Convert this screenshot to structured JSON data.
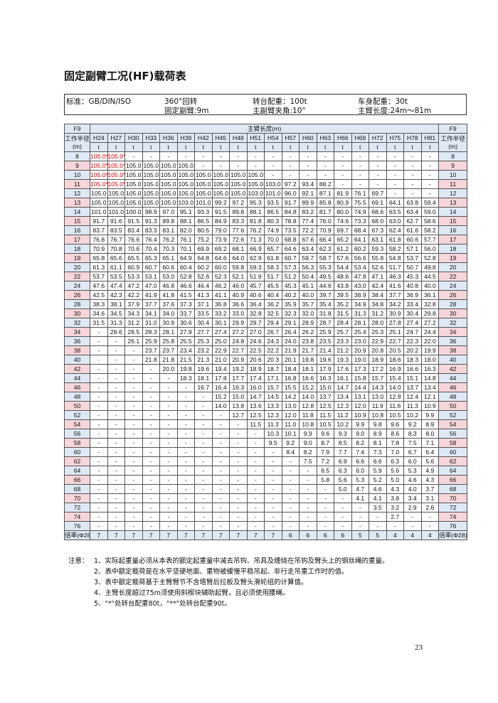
{
  "header": {
    "title": "固定副臂工况(HF)载荷表",
    "info": [
      "标准：GB/DIN/ISO",
      "360°回转",
      "固定副臂:9m",
      "转台配重：100t",
      "主副臂夹角:10°",
      "车身配重：30t",
      "主臂长度:24m～81m"
    ]
  },
  "table": {
    "corner": "F9",
    "boom_length_header": "主臂长度(m)",
    "radius_header": "工作半径(m)",
    "columns": [
      "H24",
      "H27",
      "H30",
      "H33",
      "H36",
      "H39",
      "H42",
      "H45",
      "H48",
      "H51",
      "H54",
      "H57",
      "H60",
      "H63",
      "H66",
      "H69",
      "H72",
      "H75",
      "H78",
      "H81"
    ],
    "units": [
      "t",
      "t",
      "t",
      "t",
      "t",
      "t",
      "t",
      "t",
      "t",
      "t",
      "t",
      "t",
      "t",
      "t",
      "t",
      "t",
      "t",
      "t",
      "t",
      "t"
    ],
    "rows": [
      {
        "radius": "8",
        "values": [
          "105.0*",
          "105.0*",
          "-",
          "-",
          "-",
          "-",
          "-",
          "-",
          "-",
          "-",
          "-",
          "-",
          "-",
          "-",
          "-",
          "-",
          "-",
          "-",
          "-",
          "-"
        ]
      },
      {
        "radius": "9",
        "values": [
          "105.0**",
          "105.0*",
          "105.0",
          "105.0",
          "105.0",
          "105.0",
          "-",
          "-",
          "-",
          "-",
          "-",
          "-",
          "-",
          "-",
          "-",
          "-",
          "-",
          "-",
          "-",
          "-"
        ]
      },
      {
        "radius": "10",
        "values": [
          "105.0**",
          "105.0*",
          "105.0",
          "105.0",
          "105.0",
          "105.0",
          "105.0",
          "105.0",
          "105.0",
          "105.0",
          "-",
          "-",
          "-",
          "-",
          "-",
          "-",
          "-",
          "-",
          "-",
          "-"
        ]
      },
      {
        "radius": "11",
        "values": [
          "105.0**",
          "105.0*",
          "105.0",
          "105.0",
          "105.0",
          "105.0",
          "105.0",
          "105.0",
          "105.0",
          "105.0",
          "103.0",
          "97.2",
          "93.4",
          "88.2",
          "-",
          "-",
          "-",
          "-",
          "-",
          "-"
        ]
      },
      {
        "radius": "12",
        "values": [
          "105.0",
          "105.0",
          "105.0",
          "105.0",
          "105.0",
          "105.0",
          "105.0",
          "105.0",
          "105.0",
          "103.0",
          "101.0",
          "96.0",
          "92.1",
          "87.1",
          "81.9",
          "76.1",
          "69.7",
          "-",
          "-",
          "-"
        ]
      },
      {
        "radius": "13",
        "values": [
          "105.0",
          "105.0",
          "105.0",
          "105.0",
          "105.0",
          "103.0",
          "101.0",
          "99.2",
          "97.2",
          "95.3",
          "93.5",
          "91.7",
          "89.9",
          "85.8",
          "80.9",
          "75.5",
          "69.1",
          "64.1",
          "63.8",
          "59.4"
        ]
      },
      {
        "radius": "14",
        "values": [
          "101.0",
          "101.0",
          "100.0",
          "98.9",
          "97.0",
          "95.1",
          "93.3",
          "91.5",
          "89.8",
          "88.1",
          "86.5",
          "84.8",
          "83.2",
          "81.7",
          "80.0",
          "74.9",
          "68.6",
          "63.5",
          "63.4",
          "59.0"
        ]
      },
      {
        "radius": "15",
        "values": [
          "91.7",
          "91.6",
          "91.5",
          "91.3",
          "89.8",
          "88.1",
          "86.5",
          "84.9",
          "83.3",
          "81.8",
          "80.3",
          "78.8",
          "77.4",
          "76.0",
          "74.6",
          "73.3",
          "68.0",
          "63.0",
          "62.7",
          "58.6"
        ]
      },
      {
        "radius": "16",
        "values": [
          "83.7",
          "83.5",
          "83.4",
          "83.3",
          "83.1",
          "82.0",
          "80.5",
          "79.0",
          "77.6",
          "76.2",
          "74.9",
          "73.5",
          "72.2",
          "70.9",
          "69.7",
          "68.4",
          "67.3",
          "62.4",
          "61.6",
          "58.2"
        ]
      },
      {
        "radius": "17",
        "values": [
          "76.8",
          "76.7",
          "76.6",
          "76.4",
          "76.2",
          "76.1",
          "75.2",
          "73.9",
          "72.6",
          "71.3",
          "70.0",
          "68.8",
          "67.6",
          "66.4",
          "65.2",
          "64.1",
          "63.1",
          "61.8",
          "60.6",
          "57.7"
        ]
      },
      {
        "radius": "18",
        "values": [
          "70.9",
          "70.8",
          "70.6",
          "70.4",
          "70.3",
          "70.1",
          "69.9",
          "69.2",
          "68.1",
          "66.9",
          "65.7",
          "64.6",
          "63.4",
          "62.3",
          "61.2",
          "60.2",
          "59.3",
          "58.2",
          "57.1",
          "56.0"
        ]
      },
      {
        "radius": "19",
        "values": [
          "65.8",
          "65.6",
          "65.5",
          "65.3",
          "65.1",
          "64.9",
          "64.8",
          "64.6",
          "64.0",
          "62.9",
          "61.8",
          "60.7",
          "59.7",
          "58.7",
          "57.6",
          "56.6",
          "55.8",
          "54.8",
          "53.7",
          "52.8"
        ]
      },
      {
        "radius": "20",
        "values": [
          "61.3",
          "61.1",
          "60.9",
          "60.7",
          "60.6",
          "60.4",
          "60.2",
          "60.0",
          "59.8",
          "59.3",
          "58.3",
          "57.3",
          "56.3",
          "55.3",
          "54.4",
          "53.4",
          "52.6",
          "51.7",
          "50.7",
          "49.8"
        ]
      },
      {
        "radius": "22",
        "values": [
          "53.7",
          "53.5",
          "53.3",
          "53.1",
          "53.0",
          "52.8",
          "52.6",
          "52.3",
          "52.1",
          "51.9",
          "51.7",
          "51.2",
          "50.4",
          "49.5",
          "48.6",
          "47.8",
          "47.1",
          "46.3",
          "45.3",
          "44.5"
        ]
      },
      {
        "radius": "24",
        "values": [
          "47.6",
          "47.4",
          "47.2",
          "47.0",
          "46.8",
          "46.6",
          "46.4",
          "46.2",
          "46.0",
          "45.7",
          "45.5",
          "45.3",
          "45.1",
          "44.6",
          "43.8",
          "43.0",
          "42.4",
          "41.6",
          "40.8",
          "40.0"
        ]
      },
      {
        "radius": "26",
        "values": [
          "42.5",
          "42.3",
          "42.2",
          "41.9",
          "41.8",
          "41.5",
          "41.3",
          "41.1",
          "40.9",
          "40.6",
          "40.4",
          "40.2",
          "40.0",
          "39.7",
          "39.5",
          "38.9",
          "38.4",
          "37.7",
          "36.9",
          "36.1"
        ]
      },
      {
        "radius": "28",
        "values": [
          "38.3",
          "38.1",
          "37.9",
          "37.7",
          "37.6",
          "37.3",
          "37.1",
          "36.8",
          "36.6",
          "36.4",
          "36.2",
          "35.9",
          "35.7",
          "35.4",
          "35.2",
          "34.9",
          "34.8",
          "34.2",
          "33.4",
          "32.8"
        ]
      },
      {
        "radius": "30",
        "values": [
          "34.6",
          "34.5",
          "34.3",
          "34.1",
          "34.0",
          "33.7",
          "33.5",
          "33.2",
          "33.0",
          "32.8",
          "32.5",
          "32.3",
          "32.0",
          "31.8",
          "31.5",
          "31.3",
          "31.2",
          "30.9",
          "30.4",
          "29.8"
        ]
      },
      {
        "radius": "32",
        "values": [
          "31.5",
          "31.3",
          "31.2",
          "31.0",
          "30.9",
          "30.6",
          "30.4",
          "30.1",
          "29.9",
          "29.7",
          "29.4",
          "29.1",
          "28.9",
          "28.7",
          "28.4",
          "28.1",
          "28.0",
          "27.8",
          "27.4",
          "27.2"
        ]
      },
      {
        "radius": "34",
        "values": [
          "-",
          "28.6",
          "28.5",
          "28.3",
          "28.1",
          "27.9",
          "27.7",
          "27.4",
          "27.2",
          "27.0",
          "26.7",
          "26.4",
          "26.2",
          "25.9",
          "25.7",
          "25.4",
          "25.3",
          "25.1",
          "24.7",
          "24.4"
        ]
      },
      {
        "radius": "36",
        "values": [
          "-",
          "-",
          "26.1",
          "25.9",
          "25.8",
          "25.5",
          "25.3",
          "25.0",
          "24.8",
          "24.6",
          "24.3",
          "24.0",
          "23.8",
          "23.5",
          "23.3",
          "23.0",
          "22.9",
          "22.7",
          "22.3",
          "22.0"
        ]
      },
      {
        "radius": "38",
        "values": [
          "-",
          "-",
          "-",
          "23.7",
          "23.7",
          "23.4",
          "23.2",
          "22.9",
          "22.7",
          "22.5",
          "22.2",
          "21.9",
          "21.7",
          "21.4",
          "21.2",
          "20.9",
          "20.8",
          "20.5",
          "20.2",
          "19.9"
        ]
      },
      {
        "radius": "40",
        "values": [
          "-",
          "-",
          "-",
          "21.8",
          "21.8",
          "21.5",
          "21.3",
          "21.0",
          "20.9",
          "20.6",
          "20.3",
          "20.1",
          "19.8",
          "19.6",
          "19.3",
          "19.0",
          "18.9",
          "18.6",
          "18.3",
          "18.0"
        ]
      },
      {
        "radius": "42",
        "values": [
          "-",
          "-",
          "-",
          "-",
          "20.0",
          "19.8",
          "19.6",
          "19.4",
          "19.2",
          "18.9",
          "18.7",
          "18.4",
          "18.1",
          "17.9",
          "17.6",
          "17.3",
          "17.2",
          "16.9",
          "16.6",
          "16.3"
        ]
      },
      {
        "radius": "44",
        "values": [
          "-",
          "-",
          "-",
          "-",
          "-",
          "18.3",
          "18.1",
          "17.8",
          "17.7",
          "17.4",
          "17.1",
          "16.8",
          "16.6",
          "16.3",
          "16.1",
          "15.8",
          "15.7",
          "15.4",
          "15.1",
          "14.8"
        ]
      },
      {
        "radius": "46",
        "values": [
          "-",
          "-",
          "-",
          "-",
          "-",
          "-",
          "16.7",
          "16.4",
          "16.3",
          "16.0",
          "15.7",
          "15.5",
          "15.2",
          "15.0",
          "14.7",
          "14.4",
          "14.3",
          "14.0",
          "13.7",
          "13.4"
        ]
      },
      {
        "radius": "48",
        "values": [
          "-",
          "-",
          "-",
          "-",
          "-",
          "-",
          "-",
          "15.2",
          "15.0",
          "14.7",
          "14.5",
          "14.2",
          "14.0",
          "13.7",
          "13.4",
          "13.1",
          "13.0",
          "12.8",
          "12.4",
          "12.1"
        ]
      },
      {
        "radius": "50",
        "values": [
          "-",
          "-",
          "-",
          "-",
          "-",
          "-",
          "-",
          "14.0",
          "13.8",
          "13.6",
          "13.3",
          "13.0",
          "12.8",
          "12.5",
          "12.3",
          "12.0",
          "11.9",
          "11.6",
          "11.3",
          "10.9"
        ]
      },
      {
        "radius": "52",
        "values": [
          "-",
          "-",
          "-",
          "-",
          "-",
          "-",
          "-",
          "-",
          "12.7",
          "12.5",
          "12.3",
          "12.0",
          "11.8",
          "11.5",
          "11.2",
          "10.9",
          "10.8",
          "10.5",
          "10.2",
          "9.9"
        ]
      },
      {
        "radius": "54",
        "values": [
          "-",
          "-",
          "-",
          "-",
          "-",
          "-",
          "-",
          "-",
          "-",
          "11.5",
          "11.3",
          "11.0",
          "10.8",
          "10.5",
          "10.2",
          "9.9",
          "9.8",
          "9.6",
          "9.2",
          "8.9"
        ]
      },
      {
        "radius": "56",
        "values": [
          "-",
          "-",
          "-",
          "-",
          "-",
          "-",
          "-",
          "-",
          "-",
          "-",
          "10.3",
          "10.1",
          "9.9",
          "9.6",
          "9.3",
          "9.0",
          "8.9",
          "8.6",
          "8.3",
          "8.0"
        ]
      },
      {
        "radius": "58",
        "values": [
          "-",
          "-",
          "-",
          "-",
          "-",
          "-",
          "-",
          "-",
          "-",
          "-",
          "9.5",
          "9.2",
          "9.0",
          "8.7",
          "8.5",
          "8.2",
          "8.1",
          "7.8",
          "7.5",
          "7.1"
        ]
      },
      {
        "radius": "60",
        "values": [
          "-",
          "-",
          "-",
          "-",
          "-",
          "-",
          "-",
          "-",
          "-",
          "-",
          "-",
          "8.4",
          "8.2",
          "7.9",
          "7.7",
          "7.4",
          "7.3",
          "7.0",
          "6.7",
          "6.4"
        ]
      },
      {
        "radius": "62",
        "values": [
          "-",
          "-",
          "-",
          "-",
          "-",
          "-",
          "-",
          "-",
          "-",
          "-",
          "-",
          "-",
          "7.5",
          "7.2",
          "6.9",
          "6.6",
          "6.6",
          "6.3",
          "6.0",
          "5.6"
        ]
      },
      {
        "radius": "64",
        "values": [
          "-",
          "-",
          "-",
          "-",
          "-",
          "-",
          "-",
          "-",
          "-",
          "-",
          "-",
          "-",
          "-",
          "6.5",
          "6.3",
          "6.0",
          "5.9",
          "5.6",
          "5.3",
          "4.9"
        ]
      },
      {
        "radius": "66",
        "values": [
          "-",
          "-",
          "-",
          "-",
          "-",
          "-",
          "-",
          "-",
          "-",
          "-",
          "-",
          "-",
          "-",
          "5.8",
          "5.6",
          "5.3",
          "5.2",
          "5.0",
          "4.6",
          "4.3"
        ]
      },
      {
        "radius": "68",
        "values": [
          "-",
          "-",
          "-",
          "-",
          "-",
          "-",
          "-",
          "-",
          "-",
          "-",
          "-",
          "-",
          "-",
          "-",
          "5.0",
          "4.7",
          "4.6",
          "4.3",
          "4.0",
          "3.7"
        ]
      },
      {
        "radius": "70",
        "values": [
          "-",
          "-",
          "-",
          "-",
          "-",
          "-",
          "-",
          "-",
          "-",
          "-",
          "-",
          "-",
          "-",
          "-",
          "-",
          "4.1",
          "4.1",
          "3.8",
          "3.4",
          "3.1"
        ]
      },
      {
        "radius": "72",
        "values": [
          "-",
          "-",
          "-",
          "-",
          "-",
          "-",
          "-",
          "-",
          "-",
          "-",
          "-",
          "-",
          "-",
          "-",
          "-",
          "-",
          "3.5",
          "3.2",
          "2.9",
          "2.6"
        ]
      },
      {
        "radius": "74",
        "values": [
          "-",
          "-",
          "-",
          "-",
          "-",
          "-",
          "-",
          "-",
          "-",
          "-",
          "-",
          "-",
          "-",
          "-",
          "-",
          "-",
          "-",
          "2.7",
          "-",
          "-"
        ]
      },
      {
        "radius": "76",
        "values": [
          "-",
          "-",
          "-",
          "-",
          "-",
          "-",
          "-",
          "-",
          "-",
          "-",
          "-",
          "-",
          "-",
          "-",
          "-",
          "-",
          "-",
          "-",
          "-",
          "-"
        ]
      }
    ],
    "multiplier": {
      "label": "倍率(Φ28)",
      "values": [
        7,
        7,
        7,
        7,
        7,
        7,
        7,
        7,
        7,
        7,
        7,
        6,
        6,
        6,
        6,
        5,
        5,
        4,
        4,
        4
      ]
    }
  },
  "notes": {
    "label": "注意：",
    "items": [
      "1、实际起重量必须从本表的额定起重量中减去吊钩、吊具及缠绕在吊钩及臂头上的钢丝绳的重量。",
      "2、表中额定载荷是在水平坚硬地面、重物被缓慢平稳吊起、非行走吊重工作时的值。",
      "3、表中额定载荷基于主臂臂节不含塔臂后拉板及臂头滑轮组的计算值。",
      "4、主臂长度超过75m须使用斜楔块辅助起臂，且必须使用腰绳。",
      "5、\"*\"处转台配重80t，\"**\"处转台配重90t。"
    ]
  },
  "page_number": "23"
}
